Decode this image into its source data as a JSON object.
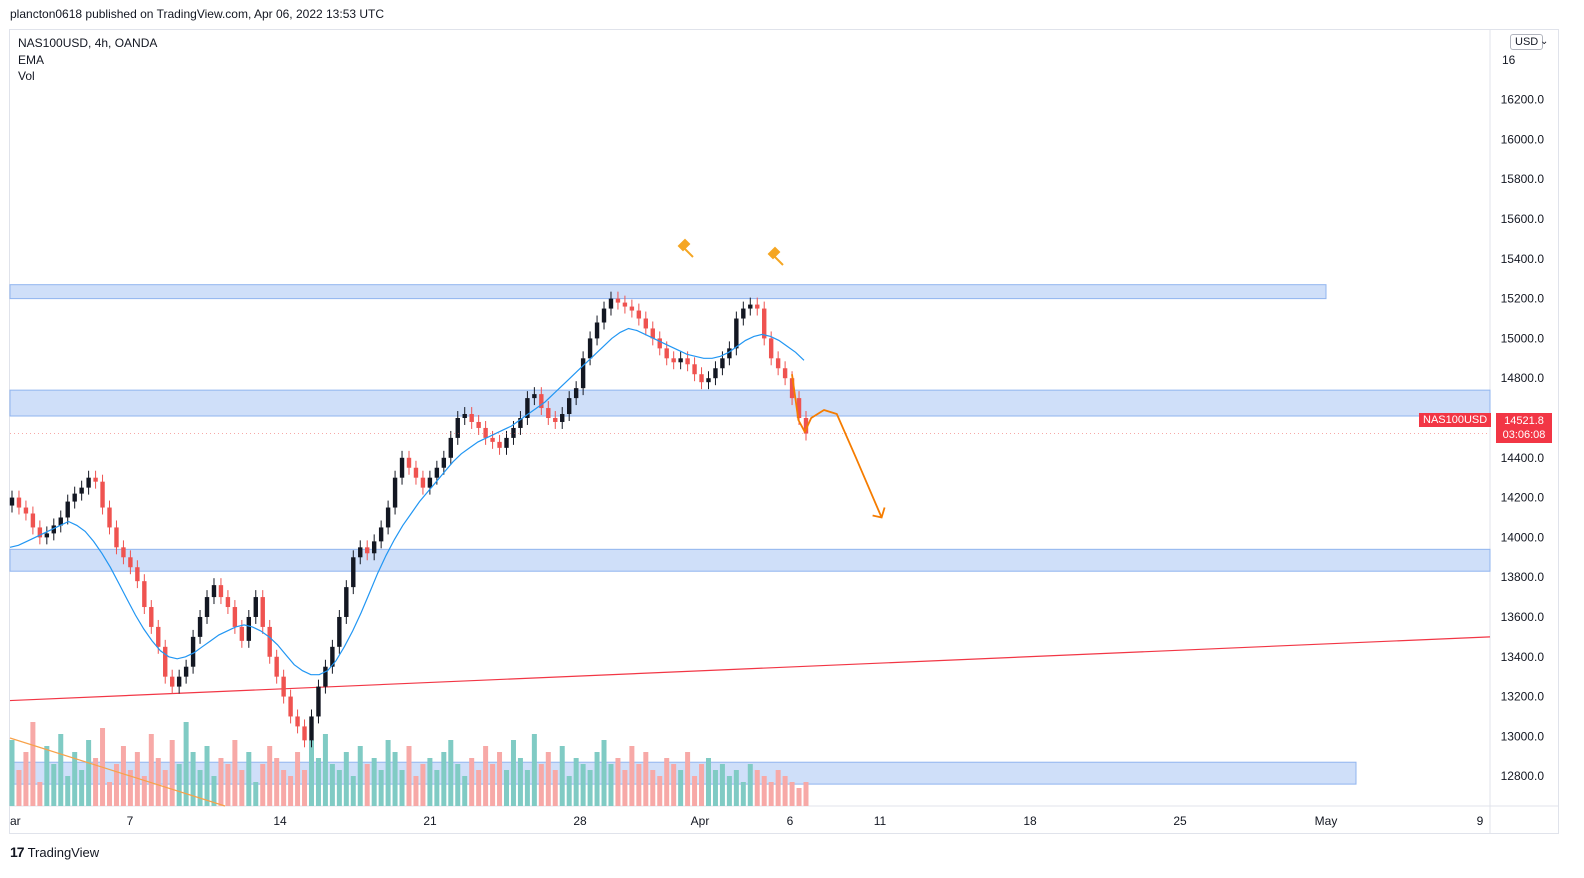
{
  "header": {
    "publish_text": "plancton0618 published on TradingView.com, Apr 06, 2022 13:53 UTC"
  },
  "legend": {
    "symbol_line": "NAS100USD, 4h, OANDA",
    "ema_label": "EMA",
    "vol_label": "Vol"
  },
  "currency_button": "USD",
  "footer": {
    "brand": "TradingView",
    "logo_mark": "17"
  },
  "price_tag": {
    "symbol": "NAS100USD",
    "price": "14521.8",
    "countdown": "03:06:08"
  },
  "colors": {
    "up": "#26a69a",
    "down": "#ef5350",
    "candle_body_up": "#131722",
    "ema": "#2196f3",
    "zone_fill": "#bfd4f7",
    "zone_stroke": "#90b4ef",
    "trendline": "#f23645",
    "annotation": "#f57c00",
    "vol_up": "#80cbc4",
    "vol_down": "#f7a9a7"
  },
  "chart_data": {
    "type": "candlestick",
    "symbol": "NAS100USD",
    "timeframe": "4h",
    "source": "OANDA",
    "price_axis": {
      "ylim": [
        12650,
        16550
      ],
      "ticks": [
        "16200.0",
        "16000.0",
        "15800.0",
        "15600.0",
        "15400.0",
        "15200.0",
        "15000.0",
        "14800.0",
        "14600.0",
        "14400.0",
        "14200.0",
        "14000.0",
        "13800.0",
        "13600.0",
        "13400.0",
        "13200.0",
        "13000.0",
        "12800.0"
      ],
      "top_partial_label": "16"
    },
    "time_axis": {
      "ticks": [
        "ar",
        "7",
        "14",
        "21",
        "28",
        "Apr",
        "6",
        "11",
        "18",
        "25",
        "May",
        "9"
      ]
    },
    "last_price": 14521.8,
    "horizontal_zones": [
      {
        "from": 15200,
        "to": 15270
      },
      {
        "from": 14610,
        "to": 14740
      },
      {
        "from": 13830,
        "to": 13940
      },
      {
        "from": 12760,
        "to": 12870
      }
    ],
    "trendline": {
      "start_price": 13180,
      "end_price": 13500
    },
    "close_series": [
      14200,
      14150,
      14120,
      14050,
      14000,
      14020,
      14060,
      14100,
      14180,
      14220,
      14250,
      14300,
      14280,
      14150,
      14050,
      13950,
      13900,
      13850,
      13780,
      13650,
      13550,
      13450,
      13300,
      13250,
      13300,
      13350,
      13500,
      13600,
      13700,
      13760,
      13700,
      13650,
      13550,
      13480,
      13600,
      13700,
      13550,
      13400,
      13300,
      13200,
      13100,
      13050,
      12980,
      13100,
      13250,
      13350,
      13450,
      13600,
      13750,
      13900,
      13950,
      13920,
      13980,
      14050,
      14150,
      14300,
      14400,
      14350,
      14300,
      14250,
      14300,
      14350,
      14400,
      14500,
      14600,
      14620,
      14580,
      14550,
      14500,
      14480,
      14450,
      14500,
      14550,
      14600,
      14700,
      14720,
      14650,
      14600,
      14580,
      14620,
      14700,
      14750,
      14900,
      15000,
      15080,
      15150,
      15200,
      15180,
      15160,
      15140,
      15100,
      15050,
      15000,
      14950,
      14900,
      14880,
      14900,
      14870,
      14820,
      14780,
      14800,
      14850,
      14900,
      14950,
      15100,
      15150,
      15170,
      15150,
      15000,
      14900,
      14850,
      14800,
      14700,
      14600,
      14521.8
    ],
    "ema_series": [
      13950,
      13960,
      13980,
      14000,
      14020,
      14040,
      14060,
      14080,
      14060,
      14030,
      13980,
      13920,
      13850,
      13770,
      13690,
      13610,
      13540,
      13480,
      13430,
      13400,
      13390,
      13400,
      13420,
      13450,
      13480,
      13510,
      13530,
      13550,
      13560,
      13550,
      13530,
      13500,
      13460,
      13410,
      13360,
      13330,
      13310,
      13310,
      13330,
      13380,
      13450,
      13530,
      13620,
      13720,
      13820,
      13910,
      13990,
      14060,
      14120,
      14180,
      14230,
      14280,
      14330,
      14380,
      14420,
      14450,
      14480,
      14500,
      14520,
      14540,
      14560,
      14590,
      14620,
      14650,
      14680,
      14720,
      14760,
      14800,
      14840,
      14880,
      14920,
      14960,
      15000,
      15030,
      15050,
      15040,
      15020,
      15000,
      14980,
      14960,
      14940,
      14920,
      14910,
      14900,
      14900,
      14910,
      14930,
      14960,
      14990,
      15010,
      15020,
      15010,
      14990,
      14960,
      14930,
      14890
    ],
    "annotation_arrow": {
      "points": [
        [
          14820,
          0
        ],
        [
          14590,
          2
        ],
        [
          14530,
          4
        ],
        [
          14600,
          6
        ],
        [
          14640,
          10
        ],
        [
          14620,
          14
        ],
        [
          14400,
          20
        ],
        [
          14100,
          28
        ]
      ]
    },
    "volume_series_rel": [
      0.55,
      0.3,
      0.45,
      0.7,
      0.2,
      0.5,
      0.35,
      0.6,
      0.25,
      0.45,
      0.3,
      0.55,
      0.4,
      0.65,
      0.2,
      0.35,
      0.5,
      0.3,
      0.45,
      0.25,
      0.6,
      0.4,
      0.3,
      0.55,
      0.35,
      0.7,
      0.45,
      0.3,
      0.5,
      0.25,
      0.4,
      0.35,
      0.55,
      0.3,
      0.45,
      0.2,
      0.35,
      0.5,
      0.4,
      0.3,
      0.25,
      0.45,
      0.3,
      0.55,
      0.4,
      0.6,
      0.35,
      0.3,
      0.45,
      0.25,
      0.5,
      0.35,
      0.4,
      0.3,
      0.55,
      0.45,
      0.3,
      0.5,
      0.25,
      0.35,
      0.4,
      0.3,
      0.45,
      0.55,
      0.35,
      0.25,
      0.4,
      0.3,
      0.5,
      0.35,
      0.45,
      0.3,
      0.55,
      0.4,
      0.3,
      0.6,
      0.35,
      0.45,
      0.3,
      0.5,
      0.25,
      0.4,
      0.35,
      0.3,
      0.45,
      0.55,
      0.35,
      0.4,
      0.3,
      0.5,
      0.35,
      0.45,
      0.3,
      0.25,
      0.4,
      0.35,
      0.3,
      0.45,
      0.25,
      0.35,
      0.4,
      0.3,
      0.35,
      0.25,
      0.3,
      0.2,
      0.35,
      0.3,
      0.25,
      0.2,
      0.3,
      0.25,
      0.2,
      0.15,
      0.2
    ]
  }
}
